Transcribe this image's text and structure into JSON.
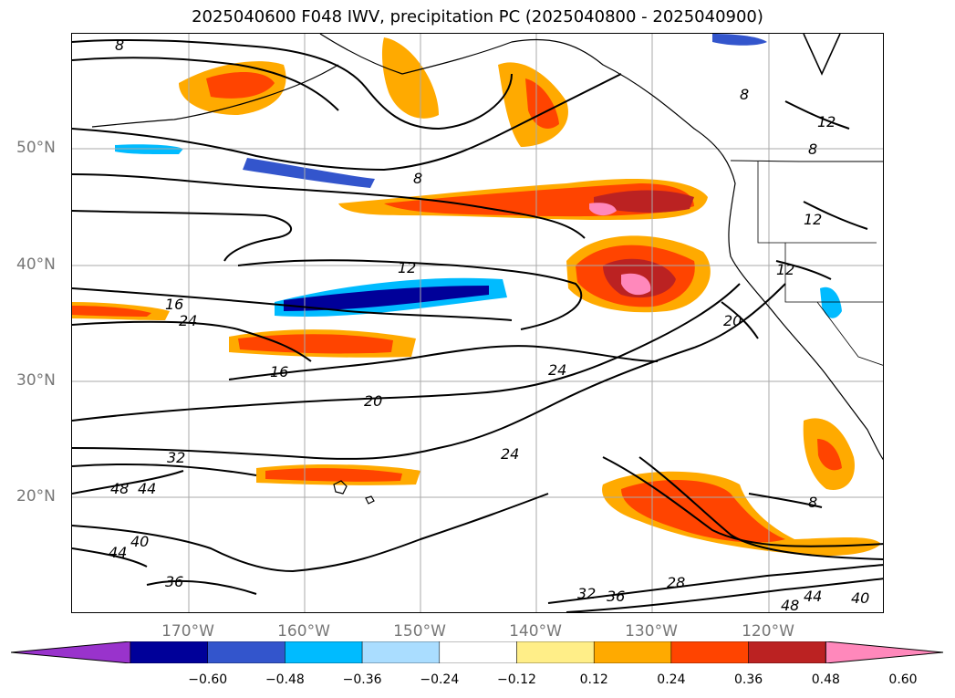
{
  "title": "2025040600 F048 IWV, precipitation PC (2025040800 - 2025040900)",
  "lat_labels": [
    "50°N",
    "40°N",
    "30°N",
    "20°N"
  ],
  "lon_labels": [
    "170°W",
    "160°W",
    "150°W",
    "140°W",
    "130°W",
    "120°W"
  ],
  "colorbar": {
    "ticks": [
      "−0.60",
      "−0.48",
      "−0.36",
      "−0.24",
      "−0.12",
      "0.12",
      "0.24",
      "0.36",
      "0.48",
      "0.60"
    ],
    "colors": [
      "#9933cc",
      "#000099",
      "#3355cc",
      "#00bbff",
      "#aaddff",
      "#ffffff",
      "#ffee88",
      "#ffaa00",
      "#ff4400",
      "#bb2222",
      "#ff88bb"
    ]
  },
  "contour_labels": [
    "8",
    "8",
    "8",
    "12",
    "12",
    "12",
    "12",
    "16",
    "16",
    "20",
    "20",
    "24",
    "24",
    "24",
    "28",
    "32",
    "32",
    "36",
    "36",
    "40",
    "40",
    "44",
    "44",
    "44",
    "48",
    "48",
    "8",
    "8"
  ]
}
